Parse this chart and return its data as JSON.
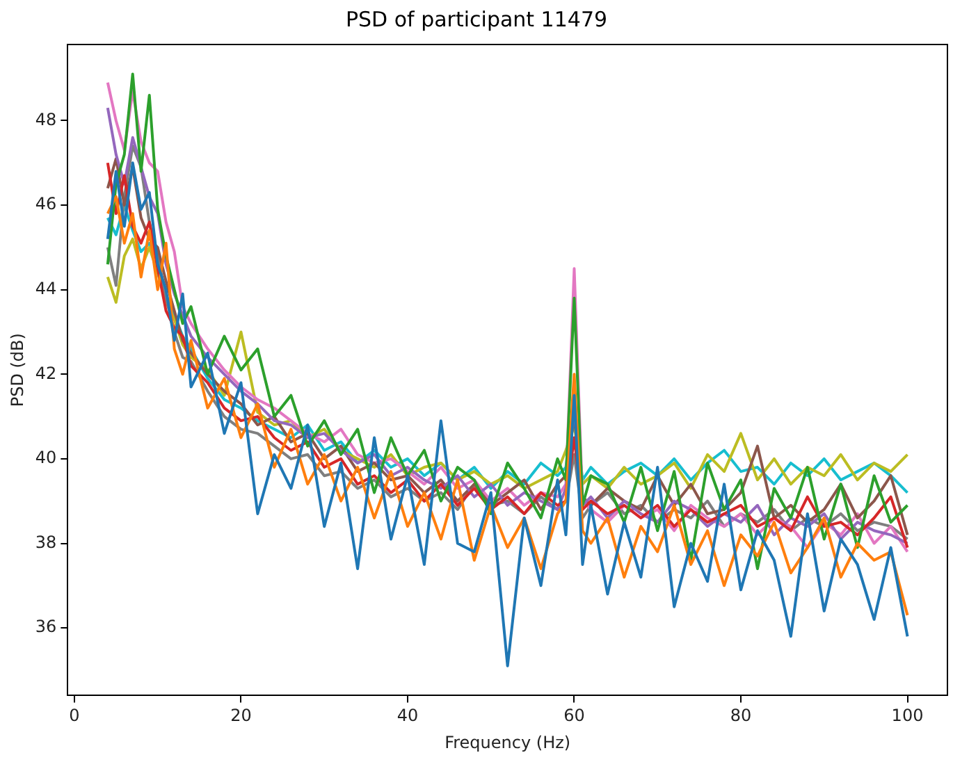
{
  "chart_data": {
    "type": "line",
    "title": "PSD of participant 11479",
    "xlabel": "Frequency (Hz)",
    "ylabel": "PSD (dB)",
    "x": [
      4,
      5,
      6,
      7,
      8,
      9,
      10,
      11,
      12,
      13,
      14,
      16,
      18,
      20,
      22,
      24,
      26,
      28,
      30,
      32,
      34,
      36,
      38,
      40,
      42,
      44,
      46,
      48,
      50,
      52,
      54,
      56,
      58,
      59,
      60,
      61,
      62,
      64,
      66,
      68,
      70,
      72,
      74,
      76,
      78,
      80,
      82,
      84,
      86,
      88,
      90,
      92,
      94,
      96,
      98,
      100
    ],
    "xlim": [
      -0.8,
      104.8
    ],
    "xticks": [
      0,
      20,
      40,
      60,
      80,
      100
    ],
    "ylim": [
      34.4,
      49.8
    ],
    "yticks": [
      36,
      38,
      40,
      42,
      44,
      46,
      48
    ],
    "grid": false,
    "legend": false,
    "series": [
      {
        "color": "#1f77b4",
        "values": [
          45.2,
          46.8,
          45.5,
          47.0,
          45.9,
          46.3,
          44.6,
          44.0,
          42.8,
          43.9,
          41.7,
          42.5,
          40.6,
          41.8,
          38.7,
          40.1,
          39.3,
          40.8,
          38.4,
          39.9,
          37.4,
          40.5,
          38.1,
          39.6,
          37.5,
          40.9,
          38.0,
          37.8,
          39.2,
          35.1,
          38.6,
          37.0,
          39.5,
          38.2,
          41.5,
          37.5,
          38.9,
          36.8,
          38.5,
          37.2,
          39.8,
          36.5,
          38.0,
          37.1,
          39.4,
          36.9,
          38.3,
          37.6,
          35.8,
          38.7,
          36.4,
          38.1,
          37.5,
          36.2,
          37.9,
          35.8
        ]
      },
      {
        "color": "#ff7f0e",
        "values": [
          45.8,
          46.2,
          45.1,
          45.8,
          44.3,
          45.4,
          44.0,
          45.1,
          42.6,
          42.0,
          42.8,
          41.2,
          41.9,
          40.5,
          41.3,
          39.8,
          40.7,
          39.4,
          40.1,
          39.0,
          39.8,
          38.6,
          39.7,
          38.4,
          39.2,
          38.1,
          39.5,
          37.6,
          38.9,
          37.9,
          38.6,
          37.4,
          38.7,
          39.0,
          42.0,
          38.3,
          38.0,
          38.6,
          37.2,
          38.4,
          37.8,
          38.9,
          37.5,
          38.3,
          37.0,
          38.2,
          37.7,
          38.5,
          37.3,
          37.9,
          38.6,
          37.2,
          38.0,
          37.6,
          37.8,
          36.3
        ]
      },
      {
        "color": "#2ca02c",
        "values": [
          44.6,
          46.5,
          47.2,
          49.1,
          46.8,
          48.6,
          45.9,
          44.8,
          44.0,
          43.2,
          43.6,
          42.0,
          42.9,
          42.1,
          42.6,
          41.0,
          41.5,
          40.3,
          40.9,
          40.1,
          40.7,
          39.2,
          40.5,
          39.6,
          40.2,
          39.0,
          39.8,
          39.5,
          38.7,
          39.9,
          39.3,
          38.6,
          40.0,
          39.5,
          43.8,
          38.9,
          39.6,
          39.4,
          38.5,
          39.8,
          38.3,
          39.7,
          37.6,
          39.9,
          38.8,
          39.5,
          37.4,
          39.3,
          38.6,
          39.8,
          38.1,
          39.4,
          37.9,
          39.6,
          38.5,
          38.9
        ]
      },
      {
        "color": "#d62728",
        "values": [
          47.0,
          45.8,
          46.7,
          45.5,
          45.1,
          45.6,
          44.5,
          43.5,
          43.1,
          42.9,
          42.2,
          41.8,
          41.2,
          40.9,
          41.0,
          40.5,
          40.2,
          40.4,
          39.8,
          40.0,
          39.4,
          39.6,
          39.2,
          39.5,
          39.0,
          39.4,
          38.9,
          39.3,
          38.8,
          39.1,
          38.7,
          39.2,
          38.9,
          39.0,
          40.5,
          38.8,
          39.0,
          38.7,
          38.9,
          38.6,
          38.9,
          38.4,
          38.8,
          38.5,
          38.7,
          38.9,
          38.4,
          38.6,
          38.3,
          39.1,
          38.4,
          38.5,
          38.2,
          38.6,
          39.1,
          37.9
        ]
      },
      {
        "color": "#9467bd",
        "values": [
          48.3,
          47.2,
          46.5,
          47.6,
          46.9,
          46.2,
          45.8,
          44.6,
          43.9,
          43.4,
          42.9,
          42.4,
          42.0,
          41.6,
          41.3,
          40.9,
          40.8,
          40.5,
          40.6,
          40.2,
          39.9,
          40.1,
          39.6,
          39.8,
          39.5,
          39.3,
          39.6,
          39.1,
          39.4,
          38.9,
          39.2,
          39.0,
          38.8,
          39.3,
          41.2,
          38.9,
          39.1,
          38.6,
          39.0,
          38.7,
          38.5,
          39.0,
          38.8,
          38.4,
          38.7,
          38.5,
          38.9,
          38.2,
          38.6,
          38.4,
          38.7,
          38.1,
          38.5,
          38.3,
          38.2,
          38.0
        ]
      },
      {
        "color": "#8c564b",
        "values": [
          46.4,
          47.1,
          46.0,
          46.9,
          45.7,
          45.2,
          45.0,
          44.2,
          43.5,
          42.8,
          42.5,
          42.0,
          41.6,
          41.3,
          40.8,
          41.0,
          40.4,
          40.6,
          40.0,
          40.3,
          39.7,
          39.9,
          39.5,
          39.6,
          39.2,
          39.5,
          39.0,
          39.4,
          38.9,
          39.2,
          39.5,
          38.8,
          39.4,
          39.6,
          41.0,
          39.1,
          38.9,
          39.3,
          39.0,
          38.8,
          39.6,
          38.9,
          39.4,
          38.7,
          38.8,
          39.2,
          40.3,
          38.6,
          38.9,
          38.5,
          38.8,
          39.4,
          38.6,
          39.0,
          39.6,
          38.2
        ]
      },
      {
        "color": "#e377c2",
        "values": [
          48.9,
          48.0,
          47.3,
          48.7,
          47.5,
          47.0,
          46.8,
          45.6,
          44.9,
          43.6,
          43.2,
          42.6,
          42.1,
          41.7,
          41.4,
          41.2,
          40.9,
          40.6,
          40.4,
          40.7,
          40.1,
          39.9,
          40.0,
          39.7,
          39.4,
          39.8,
          39.3,
          39.5,
          39.0,
          39.3,
          38.9,
          39.2,
          39.1,
          39.4,
          44.5,
          39.0,
          38.8,
          38.5,
          38.9,
          38.6,
          38.8,
          38.3,
          38.9,
          38.6,
          38.4,
          38.7,
          38.2,
          38.6,
          38.4,
          37.9,
          38.5,
          38.2,
          38.7,
          38.0,
          38.4,
          37.8
        ]
      },
      {
        "color": "#7f7f7f",
        "values": [
          45.0,
          44.1,
          46.2,
          47.4,
          46.9,
          45.6,
          44.8,
          43.8,
          43.0,
          42.4,
          42.3,
          41.6,
          41.0,
          40.7,
          40.6,
          40.3,
          40.0,
          40.1,
          39.6,
          39.7,
          39.3,
          39.5,
          39.1,
          39.3,
          39.0,
          39.2,
          38.8,
          39.4,
          38.9,
          39.0,
          38.7,
          39.1,
          38.8,
          39.0,
          40.1,
          38.6,
          38.9,
          39.2,
          38.7,
          38.9,
          38.5,
          38.8,
          38.6,
          39.0,
          38.4,
          38.7,
          38.5,
          38.8,
          38.3,
          38.6,
          38.4,
          38.7,
          38.3,
          38.5,
          38.4,
          38.1
        ]
      },
      {
        "color": "#bcbd22",
        "values": [
          44.3,
          43.7,
          44.8,
          45.2,
          44.5,
          45.0,
          44.4,
          43.7,
          43.3,
          42.7,
          42.4,
          42.1,
          41.5,
          43.0,
          41.1,
          40.8,
          40.9,
          40.5,
          40.7,
          40.2,
          40.0,
          39.8,
          40.1,
          39.6,
          39.8,
          39.9,
          39.5,
          39.7,
          39.4,
          39.6,
          39.3,
          39.5,
          39.7,
          40.2,
          40.8,
          39.4,
          39.6,
          39.3,
          39.8,
          39.4,
          39.6,
          39.9,
          39.3,
          40.1,
          39.7,
          40.6,
          39.5,
          40.0,
          39.4,
          39.8,
          39.6,
          40.1,
          39.5,
          39.9,
          39.7,
          40.1
        ]
      },
      {
        "color": "#17becf",
        "values": [
          45.7,
          45.3,
          46.0,
          45.4,
          44.9,
          45.1,
          44.7,
          43.9,
          43.4,
          42.9,
          42.6,
          41.9,
          41.4,
          41.2,
          40.9,
          40.7,
          40.5,
          40.8,
          40.2,
          40.4,
          39.9,
          40.2,
          39.8,
          40.0,
          39.6,
          39.9,
          39.5,
          39.8,
          39.3,
          39.7,
          39.4,
          39.9,
          39.6,
          39.8,
          41.3,
          39.5,
          39.8,
          39.4,
          39.7,
          39.9,
          39.6,
          40.0,
          39.5,
          39.9,
          40.2,
          39.7,
          39.8,
          39.4,
          39.9,
          39.6,
          40.0,
          39.5,
          39.7,
          39.9,
          39.6,
          39.2
        ]
      }
    ]
  }
}
